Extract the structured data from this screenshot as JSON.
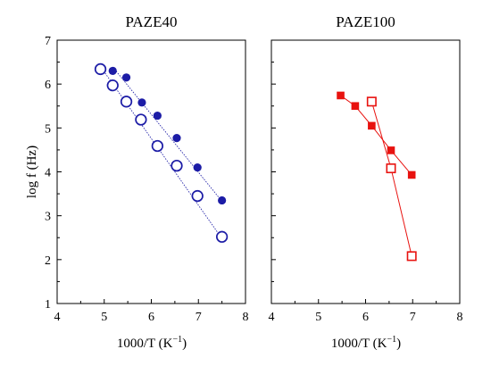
{
  "chart_data": [
    {
      "type": "scatter",
      "title": "PAZE40",
      "xlabel": "1000/T (K",
      "xlabel_sup": "−1",
      "xlabel_close": ")",
      "ylabel": "log f (Hz)",
      "xlim": [
        4,
        8
      ],
      "ylim": [
        1,
        7
      ],
      "xticks": [
        "4",
        "5",
        "6",
        "7",
        "8"
      ],
      "yticks": [
        "1",
        "2",
        "3",
        "4",
        "5",
        "6",
        "7"
      ],
      "grid": false,
      "color": "#1c1ca6",
      "series": [
        {
          "marker": "filled-circle",
          "x": [
            5.18,
            5.47,
            5.8,
            6.13,
            6.54,
            6.98,
            7.5
          ],
          "y": [
            6.3,
            6.15,
            5.58,
            5.28,
            4.77,
            4.1,
            3.35
          ],
          "fit_line": [
            [
              5.18,
              6.39
            ],
            [
              7.5,
              3.33
            ]
          ]
        },
        {
          "marker": "open-circle",
          "x": [
            4.92,
            5.18,
            5.47,
            5.78,
            6.13,
            6.54,
            6.98,
            7.5
          ],
          "y": [
            6.34,
            5.97,
            5.6,
            5.19,
            4.59,
            4.14,
            3.45,
            2.52
          ],
          "fit_line": [
            [
              4.92,
              6.4
            ],
            [
              7.5,
              2.48
            ]
          ]
        }
      ]
    },
    {
      "type": "line",
      "title": "PAZE100",
      "xlabel": "1000/T (K",
      "xlabel_sup": "−1",
      "xlabel_close": ")",
      "xlim": [
        4,
        8
      ],
      "ylim": [
        1,
        7
      ],
      "xticks": [
        "4",
        "5",
        "6",
        "7",
        "8"
      ],
      "grid": false,
      "color": "#e8120f",
      "series": [
        {
          "marker": "filled-square",
          "x": [
            5.47,
            5.78,
            6.13,
            6.54,
            6.98
          ],
          "y": [
            5.74,
            5.5,
            5.05,
            4.49,
            3.93
          ]
        },
        {
          "marker": "open-square",
          "x": [
            6.13,
            6.54,
            6.98
          ],
          "y": [
            5.6,
            4.08,
            2.08
          ]
        }
      ]
    }
  ]
}
